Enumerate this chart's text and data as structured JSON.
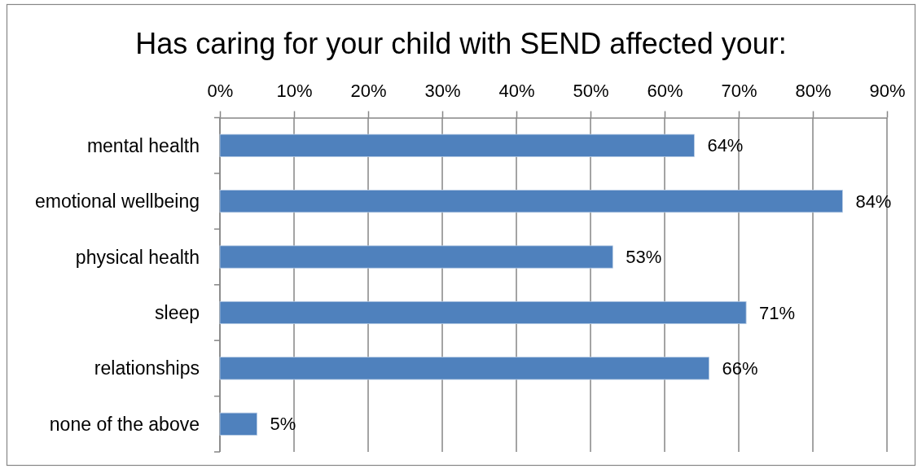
{
  "chart_data": {
    "type": "bar",
    "orientation": "horizontal",
    "title": "Has caring for your child with SEND affected your:",
    "categories": [
      "mental health",
      "emotional wellbeing",
      "physical health",
      "sleep",
      "relationships",
      "none of the above"
    ],
    "values": [
      64,
      84,
      53,
      71,
      66,
      5
    ],
    "color": "#4f81bd",
    "value_labels": [
      "64%",
      "84%",
      "53%",
      "71%",
      "66%",
      "5%"
    ],
    "xlim": [
      0,
      90
    ],
    "xticks": [
      {
        "value": 0,
        "label": "0%"
      },
      {
        "value": 10,
        "label": "10%"
      },
      {
        "value": 20,
        "label": "20%"
      },
      {
        "value": 30,
        "label": "30%"
      },
      {
        "value": 40,
        "label": "40%"
      },
      {
        "value": 50,
        "label": "50%"
      },
      {
        "value": 60,
        "label": "60%"
      },
      {
        "value": 70,
        "label": "70%"
      },
      {
        "value": 80,
        "label": "80%"
      },
      {
        "value": 90,
        "label": "90%"
      }
    ],
    "grid": "x"
  }
}
